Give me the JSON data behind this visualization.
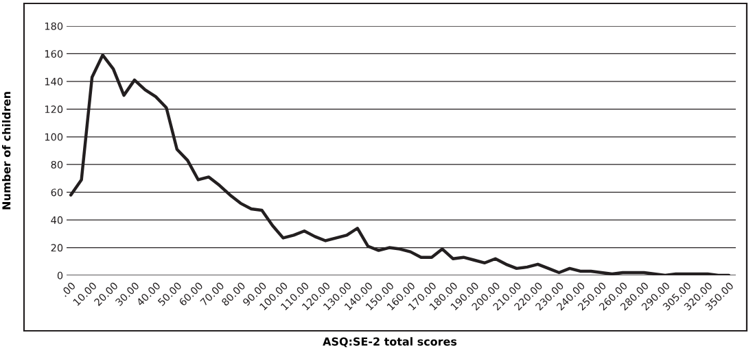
{
  "chart_data": {
    "type": "line",
    "xlabel": "ASQ:SE-2 total scores",
    "ylabel": "Number of children",
    "categories": [
      ".00",
      null,
      "10.00",
      null,
      "20.00",
      null,
      "30.00",
      null,
      "40.00",
      null,
      "50.00",
      null,
      "60.00",
      null,
      "70.00",
      null,
      "80.00",
      null,
      "90.00",
      null,
      "100.00",
      null,
      "110.00",
      null,
      "120.00",
      null,
      "130.00",
      null,
      "140.00",
      null,
      "150.00",
      null,
      "160.00",
      null,
      "170.00",
      null,
      "180.00",
      null,
      "190.00",
      null,
      "200.00",
      null,
      "210.00",
      null,
      "220.00",
      null,
      "230.00",
      null,
      "240.00",
      null,
      "250.00",
      null,
      "260.00",
      null,
      "280.00",
      null,
      "290.00",
      null,
      "305.00",
      null,
      "320.00",
      null,
      "350.00"
    ],
    "series": [
      {
        "color": "#231f20",
        "values": [
          58,
          69,
          143,
          159,
          149,
          130,
          141,
          134,
          129,
          121,
          91,
          83,
          69,
          71,
          65,
          58,
          52,
          48,
          47,
          36,
          27,
          29,
          32,
          28,
          25,
          27,
          29,
          34,
          21,
          18,
          20,
          19,
          17,
          13,
          13,
          19,
          12,
          13,
          11,
          9,
          12,
          8,
          5,
          6,
          8,
          5,
          2,
          5,
          3,
          3,
          2,
          1,
          2,
          2,
          2,
          1,
          0,
          1,
          1,
          1,
          1,
          0,
          0
        ]
      }
    ],
    "ylim": [
      0,
      180
    ],
    "yticks": [
      0,
      20,
      40,
      60,
      80,
      100,
      120,
      140,
      160,
      180
    ],
    "grid": "y",
    "legend": false,
    "marker": "none",
    "line_style": "solid"
  }
}
